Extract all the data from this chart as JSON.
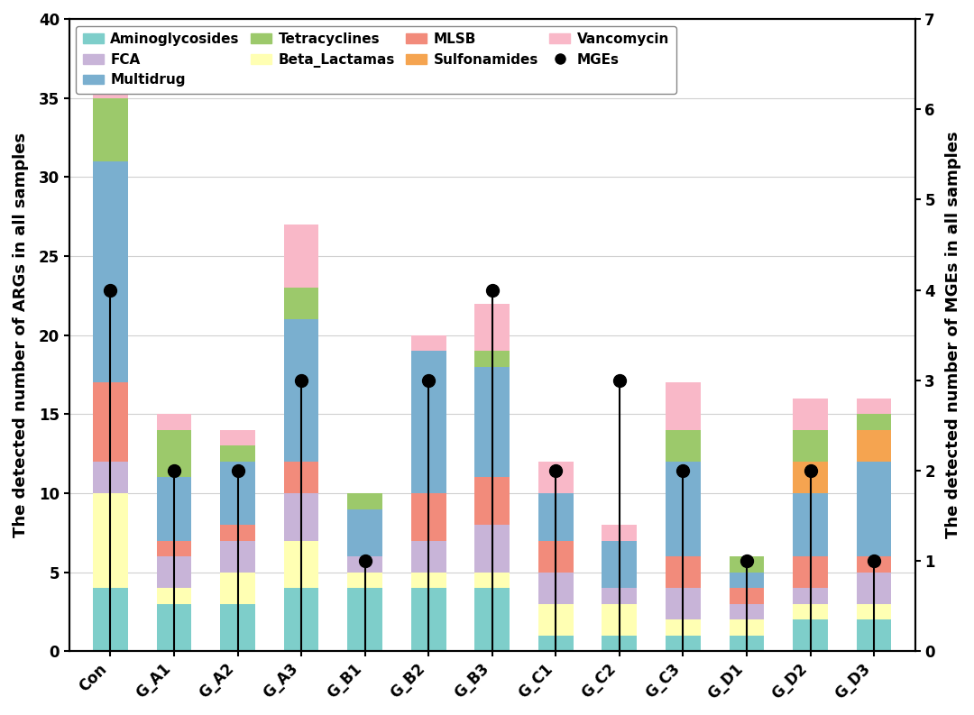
{
  "categories": [
    "Con",
    "G_A1",
    "G_A2",
    "G_A3",
    "G_B1",
    "G_B2",
    "G_B3",
    "G_C1",
    "G_C2",
    "G_C3",
    "G_D1",
    "G_D2",
    "G_D3"
  ],
  "stacks": {
    "Aminoglycosides": [
      4,
      3,
      3,
      4,
      4,
      4,
      4,
      1,
      1,
      1,
      1,
      2,
      2
    ],
    "Beta_Lactamas": [
      6,
      1,
      2,
      3,
      1,
      1,
      1,
      2,
      2,
      1,
      1,
      1,
      1
    ],
    "FCA": [
      2,
      2,
      2,
      3,
      1,
      2,
      3,
      2,
      1,
      2,
      1,
      1,
      2
    ],
    "MLSB": [
      5,
      1,
      1,
      2,
      0,
      3,
      3,
      2,
      0,
      2,
      1,
      2,
      1
    ],
    "Multidrug": [
      14,
      4,
      4,
      9,
      3,
      9,
      7,
      3,
      3,
      6,
      1,
      4,
      6
    ],
    "Sulfonamides": [
      0,
      0,
      0,
      0,
      0,
      0,
      0,
      0,
      0,
      0,
      0,
      2,
      2
    ],
    "Tetracyclines": [
      4,
      3,
      1,
      2,
      1,
      0,
      1,
      0,
      0,
      2,
      1,
      2,
      1
    ],
    "Vancomycin": [
      2,
      1,
      1,
      4,
      0,
      1,
      3,
      2,
      1,
      3,
      0,
      2,
      1
    ]
  },
  "MGEs": [
    4,
    2,
    2,
    3,
    1,
    3,
    4,
    2,
    3,
    2,
    1,
    2,
    1
  ],
  "colors": {
    "Aminoglycosides": "#7ececa",
    "Beta_Lactamas": "#ffffb3",
    "FCA": "#c8b4d8",
    "MLSB": "#f28b7b",
    "Multidrug": "#7aafcf",
    "Sulfonamides": "#f5a450",
    "Tetracyclines": "#9cc96b",
    "Vancomycin": "#f9b8c8"
  },
  "stack_order": [
    "Aminoglycosides",
    "Beta_Lactamas",
    "FCA",
    "MLSB",
    "Multidrug",
    "Sulfonamides",
    "Tetracyclines",
    "Vancomycin"
  ],
  "left_ylim": [
    0,
    40
  ],
  "left_yticks": [
    0,
    5,
    10,
    15,
    20,
    25,
    30,
    35,
    40
  ],
  "right_ylim": [
    0,
    7
  ],
  "right_yticks": [
    0,
    1,
    2,
    3,
    4,
    5,
    6,
    7
  ],
  "ylabel_left": "The detected number of ARGs in all samples",
  "ylabel_right": "The detected number of MGEs in all samples",
  "background_color": "#ffffff",
  "legend_order": [
    "Aminoglycosides",
    "FCA",
    "Multidrug",
    "Tetracyclines",
    "Beta_Lactamas",
    "MLSB",
    "Sulfonamides",
    "Vancomycin"
  ]
}
